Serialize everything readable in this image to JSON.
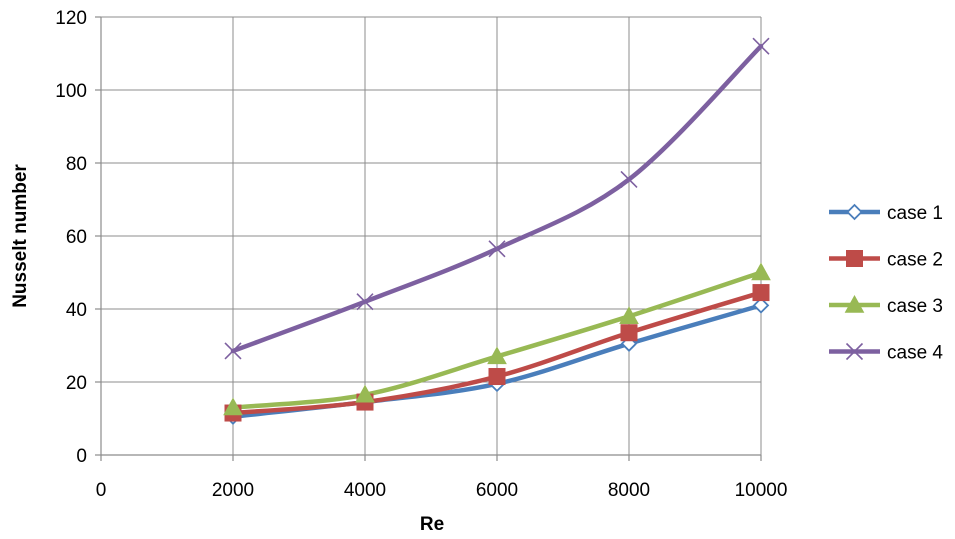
{
  "chart_data": {
    "type": "line",
    "title": "",
    "xlabel": "Re",
    "ylabel": "Nusselt number",
    "xlim": [
      0,
      10000
    ],
    "ylim": [
      0,
      120
    ],
    "xticks": [
      "0",
      "2000",
      "4000",
      "6000",
      "8000",
      "10000"
    ],
    "xtick_values": [
      0,
      2000,
      4000,
      6000,
      8000,
      10000
    ],
    "yticks": [
      "0",
      "20",
      "40",
      "60",
      "80",
      "100",
      "120"
    ],
    "ytick_values": [
      0,
      20,
      40,
      60,
      80,
      100,
      120
    ],
    "grid": true,
    "legend_position": "right",
    "x": [
      2000,
      4000,
      6000,
      8000,
      10000
    ],
    "series": [
      {
        "name": "case 1",
        "values": [
          10.5,
          14.5,
          19.5,
          30.5,
          41
        ],
        "color": "#4a7ebb",
        "marker": "diamond-open"
      },
      {
        "name": "case 2",
        "values": [
          11.5,
          14.5,
          21.5,
          33.5,
          44.5
        ],
        "color": "#be4b48",
        "marker": "square"
      },
      {
        "name": "case 3",
        "values": [
          13,
          16.5,
          27,
          38,
          50
        ],
        "color": "#98b954",
        "marker": "triangle"
      },
      {
        "name": "case 4",
        "values": [
          28.5,
          42,
          56.5,
          75.5,
          112
        ],
        "color": "#7d60a0",
        "marker": "cross"
      }
    ]
  }
}
